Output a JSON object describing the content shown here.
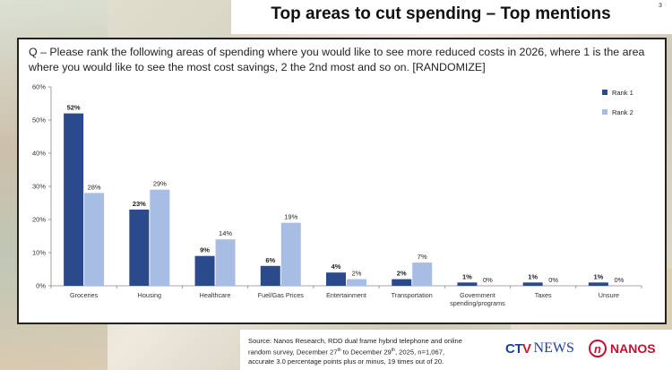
{
  "header": {
    "title": "Top areas to cut spending – Top mentions",
    "page_number": "3"
  },
  "question": "Q – Please rank the following areas of spending where you would like to see more reduced costs in 2026, where 1 is the area where you would like to see the most cost savings, 2 the 2nd most and so on. [RANDOMIZE]",
  "chart_data": {
    "type": "bar",
    "categories": [
      "Groceries",
      "Housing",
      "Healthcare",
      "Fuel/Gas Prices",
      "Entertainment",
      "Transportation",
      "Government spending/programs",
      "Taxes",
      "Unsure"
    ],
    "category_lines": [
      [
        "Groceries"
      ],
      [
        "Housing"
      ],
      [
        "Healthcare"
      ],
      [
        "Fuel/Gas Prices"
      ],
      [
        "Entertainment"
      ],
      [
        "Transportation"
      ],
      [
        "Government",
        "spending/programs"
      ],
      [
        "Taxes"
      ],
      [
        "Unsure"
      ]
    ],
    "series": [
      {
        "name": "Rank 1",
        "values": [
          52,
          23,
          9,
          6,
          4,
          2,
          1,
          1,
          1
        ],
        "labels": [
          "52%",
          "23%",
          "9%",
          "6%",
          "4%",
          "2%",
          "1%",
          "1%",
          "1%"
        ],
        "color": "#2b4a8b"
      },
      {
        "name": "Rank 2",
        "values": [
          28,
          29,
          14,
          19,
          2,
          7,
          0,
          0,
          0
        ],
        "labels": [
          "28%",
          "29%",
          "14%",
          "19%",
          "2%",
          "7%",
          "0%",
          "0%",
          "0%"
        ],
        "color": "#a8bde3"
      }
    ],
    "yticks": [
      "0%",
      "10%",
      "20%",
      "30%",
      "40%",
      "50%",
      "60%"
    ],
    "ylim": [
      0,
      60
    ],
    "legend_position": "top-right"
  },
  "source": {
    "line1": "Source: Nanos Research, RDD dual frame hybrid telephone and online",
    "line2_a": "random survey, December 27",
    "sup1": "th",
    "line2_b": " to December 29",
    "sup2": "th",
    "line2_c": ", 2025, n=1,067,",
    "line3": "accurate 3.0 percentage points plus or minus, 19 times out of 20."
  },
  "logos": {
    "ctv_left": "CT",
    "ctv_red": "V",
    "ctv_news": "NEWS",
    "nanos_mark": "n",
    "nanos_word": "NANOS"
  }
}
